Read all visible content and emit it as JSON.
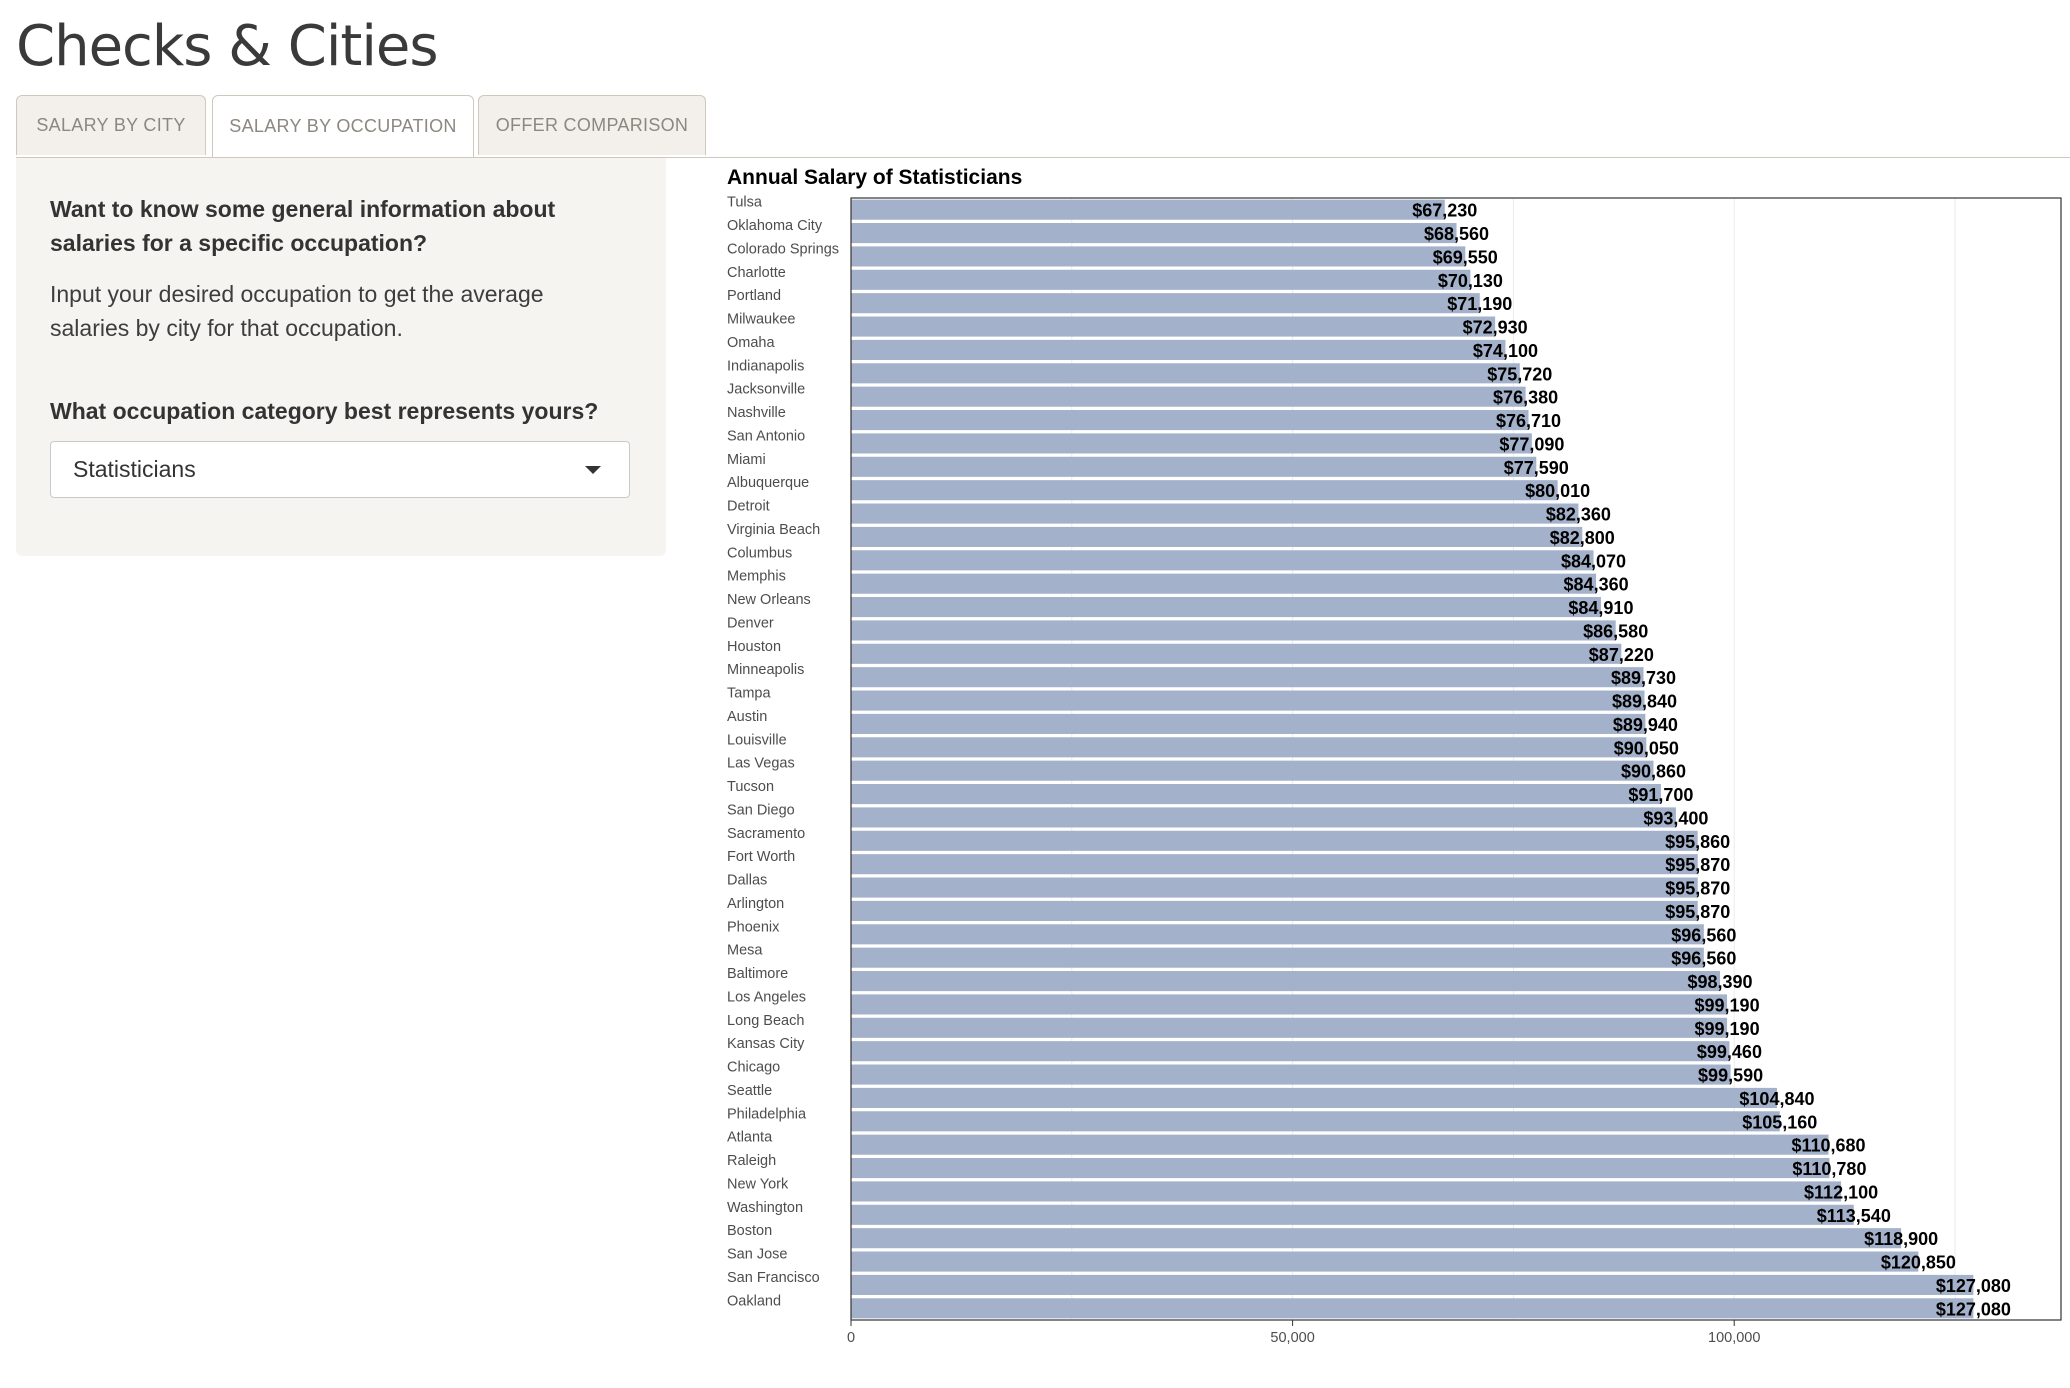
{
  "app": {
    "title": "Checks & Cities"
  },
  "tabs": [
    {
      "label": "SALARY BY CITY",
      "active": false
    },
    {
      "label": "SALARY BY OCCUPATION",
      "active": true
    },
    {
      "label": "OFFER COMPARISON",
      "active": false
    }
  ],
  "sidebar": {
    "heading": "Want to know some general information about salaries for a specific occupation?",
    "description": "Input your desired occupation to get the average salaries by city for that occupation.",
    "select_label": "What occupation category best represents yours?",
    "selected_value": "Statisticians"
  },
  "colors": {
    "bar": "#a3b1ca",
    "panel_bg": "#f6f4f0",
    "grid": "#ebebeb"
  },
  "chart_data": {
    "type": "bar",
    "orientation": "horizontal",
    "title": "Annual Salary of Statisticians",
    "xlabel": "",
    "ylabel": "",
    "xlim": [
      0,
      137000
    ],
    "x_ticks": [
      0,
      50000,
      100000
    ],
    "x_tick_labels": [
      "0",
      "50,000",
      "100,000"
    ],
    "categories": [
      "Tulsa",
      "Oklahoma City",
      "Colorado Springs",
      "Charlotte",
      "Portland",
      "Milwaukee",
      "Omaha",
      "Indianapolis",
      "Jacksonville",
      "Nashville",
      "San Antonio",
      "Miami",
      "Albuquerque",
      "Detroit",
      "Virginia Beach",
      "Columbus",
      "Memphis",
      "New Orleans",
      "Denver",
      "Houston",
      "Minneapolis",
      "Tampa",
      "Austin",
      "Louisville",
      "Las Vegas",
      "Tucson",
      "San Diego",
      "Sacramento",
      "Fort Worth",
      "Dallas",
      "Arlington",
      "Phoenix",
      "Mesa",
      "Baltimore",
      "Los Angeles",
      "Long Beach",
      "Kansas City",
      "Chicago",
      "Seattle",
      "Philadelphia",
      "Atlanta",
      "Raleigh",
      "New York",
      "Washington",
      "Boston",
      "San Jose",
      "San Francisco",
      "Oakland"
    ],
    "values": [
      67230,
      68560,
      69550,
      70130,
      71190,
      72930,
      74100,
      75720,
      76380,
      76710,
      77090,
      77590,
      80010,
      82360,
      82800,
      84070,
      84360,
      84910,
      86580,
      87220,
      89730,
      89840,
      89940,
      90050,
      90860,
      91700,
      93400,
      95860,
      95870,
      95870,
      95870,
      96560,
      96560,
      98390,
      99190,
      99190,
      99460,
      99590,
      104840,
      105160,
      110680,
      110780,
      112100,
      113540,
      118900,
      120850,
      127080,
      127080
    ],
    "data_labels": [
      "$67,230",
      "$68,560",
      "$69,550",
      "$70,130",
      "$71,190",
      "$72,930",
      "$74,100",
      "$75,720",
      "$76,380",
      "$76,710",
      "$77,090",
      "$77,590",
      "$80,010",
      "$82,360",
      "$82,800",
      "$84,070",
      "$84,360",
      "$84,910",
      "$86,580",
      "$87,220",
      "$89,730",
      "$89,840",
      "$89,940",
      "$90,050",
      "$90,860",
      "$91,700",
      "$93,400",
      "$95,860",
      "$95,870",
      "$95,870",
      "$95,870",
      "$96,560",
      "$96,560",
      "$98,390",
      "$99,190",
      "$99,190",
      "$99,460",
      "$99,590",
      "$104,840",
      "$105,160",
      "$110,680",
      "$110,780",
      "$112,100",
      "$113,540",
      "$118,900",
      "$120,850",
      "$127,080",
      "$127,080"
    ]
  }
}
